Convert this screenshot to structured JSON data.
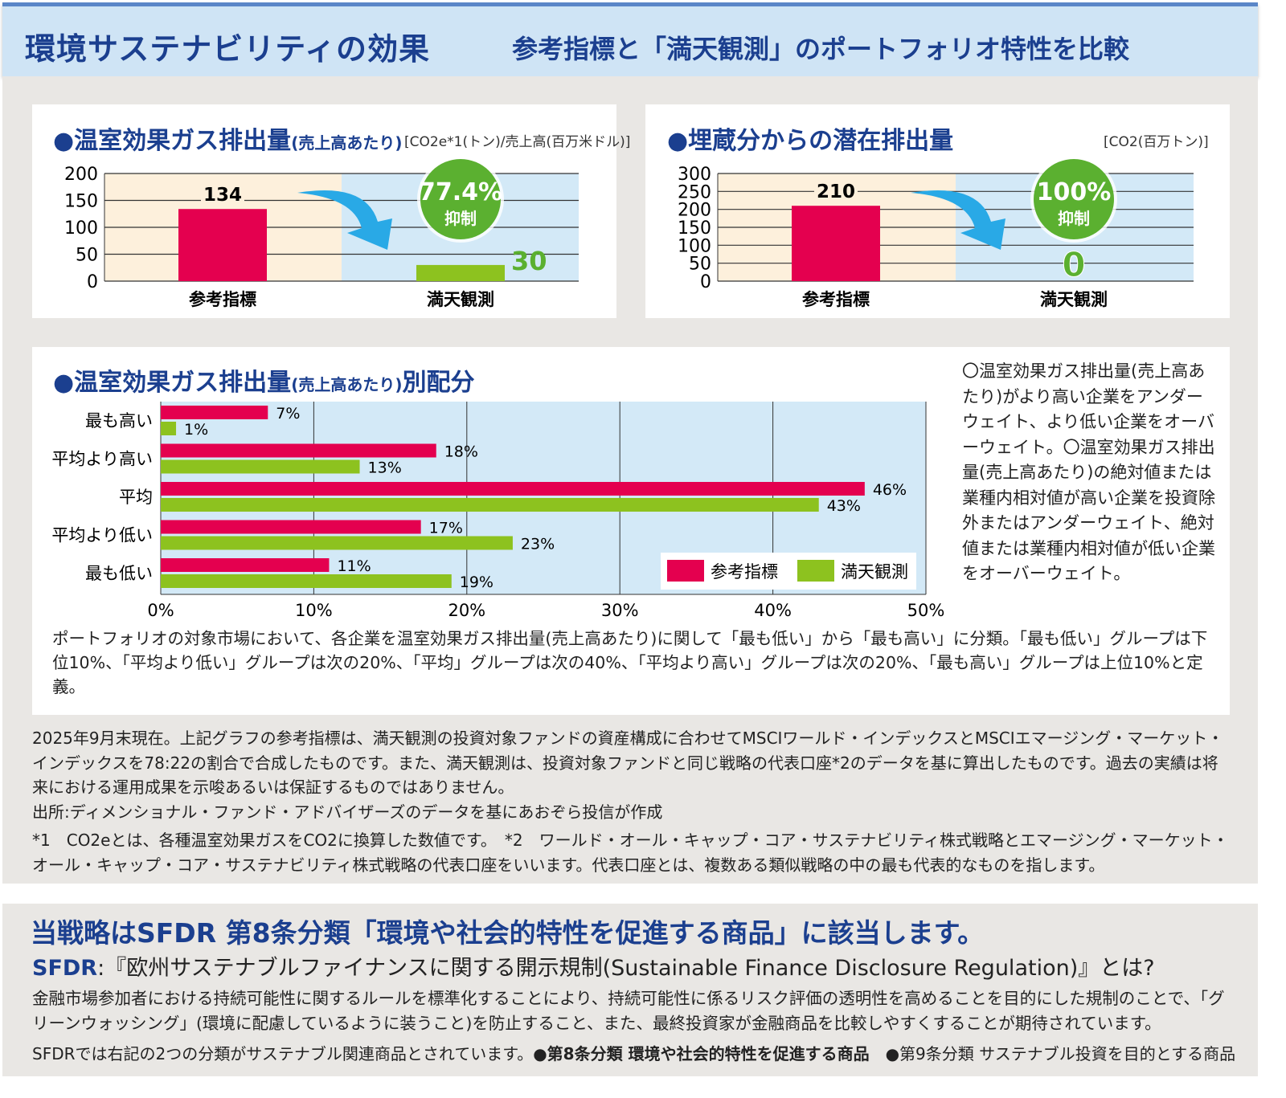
{
  "header": {
    "title": "環境サステナビリティの効果",
    "subtitle": "参考指標と「満天観測」のポートフォリオ特性を比較"
  },
  "colors": {
    "reference": "#e4004f",
    "mantentk": "#8dc21f",
    "title_blue": "#1b3f8f",
    "arrow": "#29a9e6"
  },
  "chart_data": [
    {
      "type": "bar",
      "title": "●温室効果ガス排出量",
      "title_sub": "(売上高あたり)",
      "unit": "[CO2e*1(トン)/売上高(百万米ドル)]",
      "categories": [
        "参考指標",
        "満天観測"
      ],
      "values": [
        134,
        30
      ],
      "ylim": [
        0,
        200
      ],
      "yticks": [
        0,
        50,
        100,
        150,
        200
      ],
      "data_labels": [
        "134",
        "30"
      ],
      "badge": {
        "value": "77.4%",
        "label": "抑制"
      }
    },
    {
      "type": "bar",
      "title": "●埋蔵分からの潜在排出量",
      "unit": "[CO2(百万トン)]",
      "categories": [
        "参考指標",
        "満天観測"
      ],
      "values": [
        210,
        0
      ],
      "ylim": [
        0,
        300
      ],
      "yticks": [
        0,
        50,
        100,
        150,
        200,
        250,
        300
      ],
      "data_labels": [
        "210",
        "0"
      ],
      "badge": {
        "value": "100%",
        "label": "抑制"
      }
    },
    {
      "type": "bar",
      "orientation": "horizontal",
      "title": "●温室効果ガス排出量",
      "title_sub": "(売上高あたり)",
      "title_end": "別配分",
      "categories": [
        "最も高い",
        "平均より高い",
        "平均",
        "平均より低い",
        "最も低い"
      ],
      "series": [
        {
          "name": "参考指標",
          "values": [
            7,
            18,
            46,
            17,
            11
          ]
        },
        {
          "name": "満天観測",
          "values": [
            1,
            13,
            43,
            23,
            19
          ]
        }
      ],
      "xlim": [
        0,
        50
      ],
      "xticks": [
        "0%",
        "10%",
        "20%",
        "30%",
        "40%",
        "50%"
      ],
      "legend": "bottom-right",
      "grid": true
    }
  ],
  "side_text": "〇温室効果ガス排出量(売上高あたり)がより高い企業をアンダーウェイト、より低い企業をオーバーウェイト。〇温室効果ガス排出量(売上高あたり)の絶対値または業種内相対値が高い企業を投資除外またはアンダーウェイト、絶対値または業種内相対値が低い企業をオーバーウェイト。",
  "definition": "ポートフォリオの対象市場において、各企業を温室効果ガス排出量(売上高あたり)に関して「最も低い」から「最も高い」に分類。「最も低い」グループは下位10%、「平均より低い」グループは次の20%、「平均」グループは次の40%、「平均より高い」グループは次の20%、「最も高い」グループは上位10%と定義。",
  "notes": [
    "2025年9月末現在。上記グラフの参考指標は、満天観測の投資対象ファンドの資産構成に合わせてMSCIワールド・インデックスとMSCIエマージング・マーケット・インデックスを78:22の割合で合成したものです。また、満天観測は、投資対象ファンドと同じ戦略の代表口座*2のデータを基に算出したものです。過去の実績は将来における運用成果を示唆あるいは保証するものではありません。",
    "出所:ディメンショナル・ファンド・アドバイザーズのデータを基にあおぞら投信が作成",
    "*1　CO2eとは、各種温室効果ガスをCO2に換算した数値です。　*2　ワールド・オール・キャップ・コア・サステナビリティ株式戦略とエマージング・マーケット・オール・キャップ・コア・サステナビリティ株式戦略の代表口座をいいます。代表口座とは、複数ある類似戦略の中の最も代表的なものを指します。"
  ],
  "sfdr": {
    "headline": "当戦略はSFDR 第8条分類「環境や社会的特性を促進する商品」に該当します。",
    "label": "SFDR",
    "question": ":『欧州サステナブルファイナンスに関する開示規制(Sustainable Finance Disclosure Regulation)』とは?",
    "body": "金融市場参加者における持続可能性に関するルールを標準化することにより、持続可能性に係るリスク評価の透明性を高めることを目的にした規制のことで、「グリーンウォッシング」(環境に配慮しているように装うこと)を防止すること、また、最終投資家が金融商品を比較しやすくすることが期待されています。",
    "classes_intro": "SFDRでは右記の2つの分類がサステナブル関連商品とされています。",
    "class8": "●第8条分類 環境や社会的特性を促進する商品",
    "class9": "●第9条分類 サステナブル投資を目的とする商品"
  }
}
